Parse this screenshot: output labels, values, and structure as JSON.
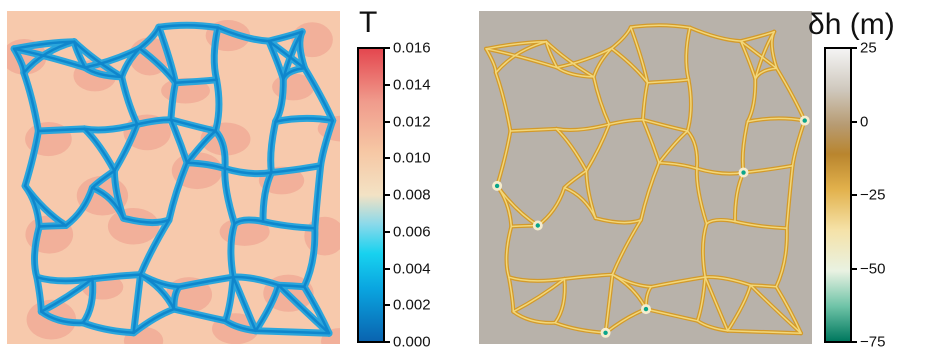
{
  "left_panel": {
    "colorbar": {
      "title": "T",
      "ticks": [
        "0.016",
        "0.014",
        "0.012",
        "0.010",
        "0.008",
        "0.006",
        "0.004",
        "0.002",
        "0.000"
      ],
      "colors": [
        "#e4474f",
        "#f09b8c",
        "#f6c7a4",
        "#f3e2c4",
        "#8ad9ea",
        "#18d2ef",
        "#0aa5e0",
        "#0a64b0"
      ]
    },
    "field_colors": {
      "background": "#f7c9ac",
      "warm_patch": "#f0a593",
      "network": "#2ba6dc",
      "network_core": "#0f86cc"
    }
  },
  "right_panel": {
    "colorbar": {
      "title": "δh (m)",
      "ticks": [
        "25",
        "0",
        "−25",
        "−50",
        "−75"
      ],
      "colors": [
        "#f4f4f4",
        "#cfc8bd",
        "#b79b72",
        "#b9852e",
        "#e2b14c",
        "#f5e2a8",
        "#e9f2e2",
        "#70c4a8",
        "#00785e"
      ]
    },
    "field_colors": {
      "background": "#b8b2aa",
      "network": "#d39a2a",
      "network_core": "#f2d77a",
      "node": "#0aa58a"
    }
  }
}
